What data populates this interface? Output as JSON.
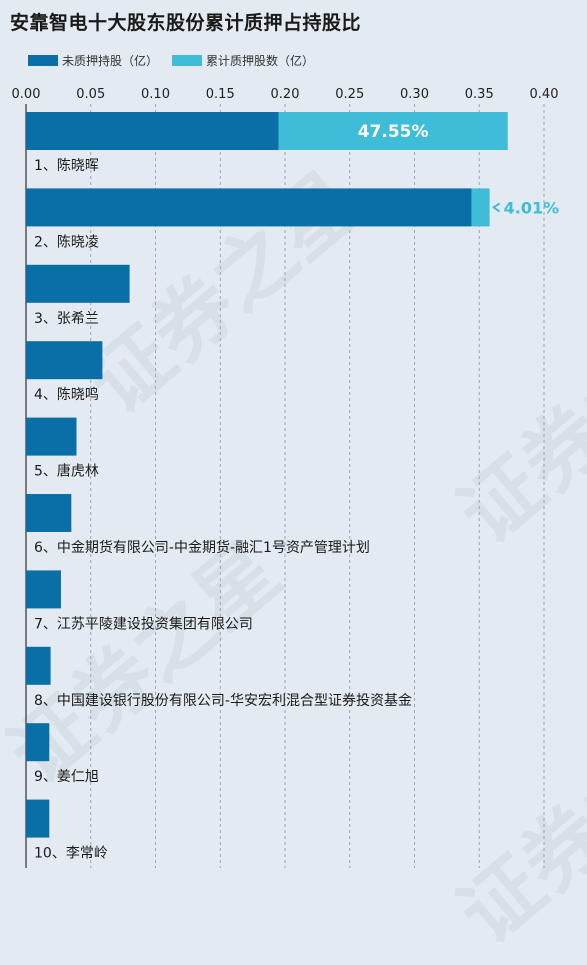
{
  "chart_data": {
    "type": "bar",
    "orientation": "horizontal",
    "stacked": true,
    "title": "安靠智电十大股东股份累计质押占持股比",
    "xlim": [
      0,
      0.4
    ],
    "xticks": [
      "0.00",
      "0.05",
      "0.10",
      "0.15",
      "0.20",
      "0.25",
      "0.30",
      "0.35",
      "0.40"
    ],
    "grid": true,
    "legend_position": "top-left",
    "colors": {
      "unpledged": "#0a6fa6",
      "pledged": "#3fbcd8"
    },
    "categories": [
      "1、陈晓晖",
      "2、陈晓凌",
      "3、张希兰",
      "4、陈晓鸣",
      "5、唐虎林",
      "6、中金期货有限公司-中金期货-融汇1号资产管理计划",
      "7、江苏平陵建设投资集团有限公司",
      "8、中国建设银行股份有限公司-华安宏利混合型证券投资基金",
      "9、姜仁旭",
      "10、李常岭"
    ],
    "series": [
      {
        "name": "未质押持股（亿）",
        "values": [
          0.195,
          0.344,
          0.08,
          0.059,
          0.039,
          0.035,
          0.027,
          0.019,
          0.018,
          0.018
        ]
      },
      {
        "name": "累计质押股数（亿）",
        "values": [
          0.177,
          0.014,
          0,
          0,
          0,
          0,
          0,
          0,
          0,
          0
        ]
      }
    ],
    "annotations": [
      {
        "category": "1、陈晓晖",
        "text": "47.55%"
      },
      {
        "category": "2、陈晓凌",
        "text": "4.01%"
      }
    ]
  },
  "watermark": "证券之星"
}
